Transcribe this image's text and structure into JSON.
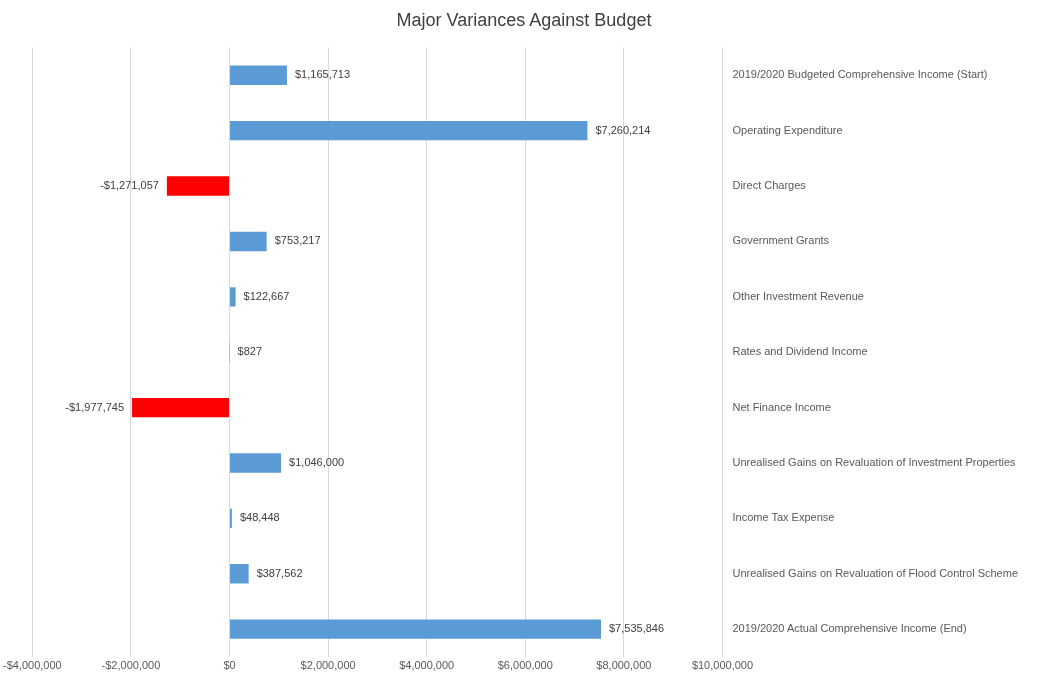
{
  "chart_data": {
    "type": "bar",
    "orientation": "horizontal",
    "title": "Major Variances Against Budget",
    "categories": [
      "2019/2020 Budgeted Comprehensive Income (Start)",
      "Operating Expenditure",
      "Direct Charges",
      "Government Grants",
      "Other Investment Revenue",
      "Rates and Dividend Income",
      "Net Finance Income",
      "Unrealised Gains on Revaluation of Investment Properties",
      "Income Tax Expense",
      "Unrealised Gains on Revaluation of Flood Control Scheme",
      "2019/2020 Actual Comprehensive Income (End)"
    ],
    "values": [
      1165713,
      7260214,
      -1271057,
      753217,
      122667,
      827,
      -1977745,
      1046000,
      48448,
      387562,
      7535846
    ],
    "colors": [
      "#5b9bd5",
      "#5b9bd5",
      "#ff0000",
      "#5b9bd5",
      "#5b9bd5",
      "#5b9bd5",
      "#ff0000",
      "#5b9bd5",
      "#5b9bd5",
      "#5b9bd5",
      "#5b9bd5"
    ],
    "value_labels": [
      "$1,165,713",
      "$7,260,214",
      "-$1,271,057",
      "$753,217",
      "$122,667",
      "$827",
      "-$1,977,745",
      "$1,046,000",
      "$48,448",
      "$387,562",
      "$7,535,846"
    ],
    "xlim": [
      -4000000,
      10000000
    ],
    "xticks": [
      {
        "value": -4000000,
        "label": "-$4,000,000"
      },
      {
        "value": -2000000,
        "label": "-$2,000,000"
      },
      {
        "value": 0,
        "label": "$0"
      },
      {
        "value": 2000000,
        "label": "$2,000,000"
      },
      {
        "value": 4000000,
        "label": "$4,000,000"
      },
      {
        "value": 6000000,
        "label": "$6,000,000"
      },
      {
        "value": 8000000,
        "label": "$8,000,000"
      },
      {
        "value": 10000000,
        "label": "$10,000,000"
      }
    ],
    "grid": "x"
  }
}
